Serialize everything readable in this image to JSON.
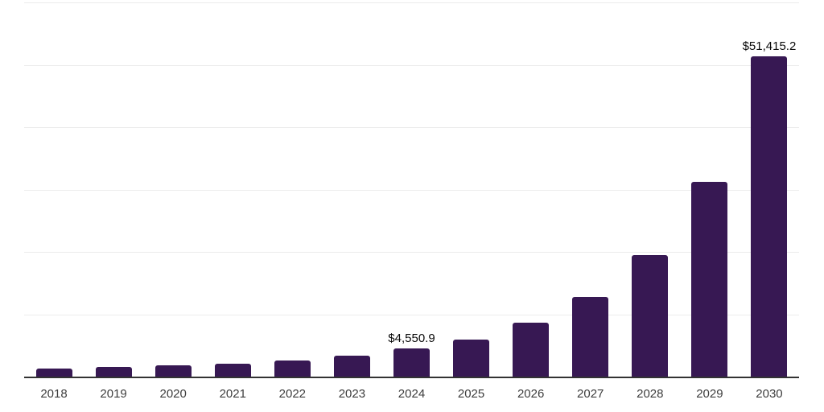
{
  "chart_data": {
    "type": "bar",
    "title": "",
    "xlabel": "",
    "ylabel": "",
    "categories": [
      "2018",
      "2019",
      "2020",
      "2021",
      "2022",
      "2023",
      "2024",
      "2025",
      "2026",
      "2027",
      "2028",
      "2029",
      "2030"
    ],
    "values": [
      1350,
      1500,
      1770,
      2100,
      2580,
      3300,
      4550.9,
      5950,
      8700,
      12740,
      19530,
      31170,
      51415.2
    ],
    "data_labels": [
      "",
      "",
      "",
      "",
      "",
      "",
      "$4,550.9",
      "",
      "",
      "",
      "",
      "",
      "$51,415.2"
    ],
    "ylim": [
      0,
      60000
    ],
    "gridlines": [
      10000,
      20000,
      30000,
      40000,
      50000,
      60000
    ],
    "grid": true,
    "legend": false,
    "colors": {
      "bar": "#371853",
      "axis_line": "#333333",
      "gridline": "#ececec",
      "tick_label": "#3c3c3c",
      "data_label": "#0a0a0a",
      "background": "#ffffff"
    }
  }
}
